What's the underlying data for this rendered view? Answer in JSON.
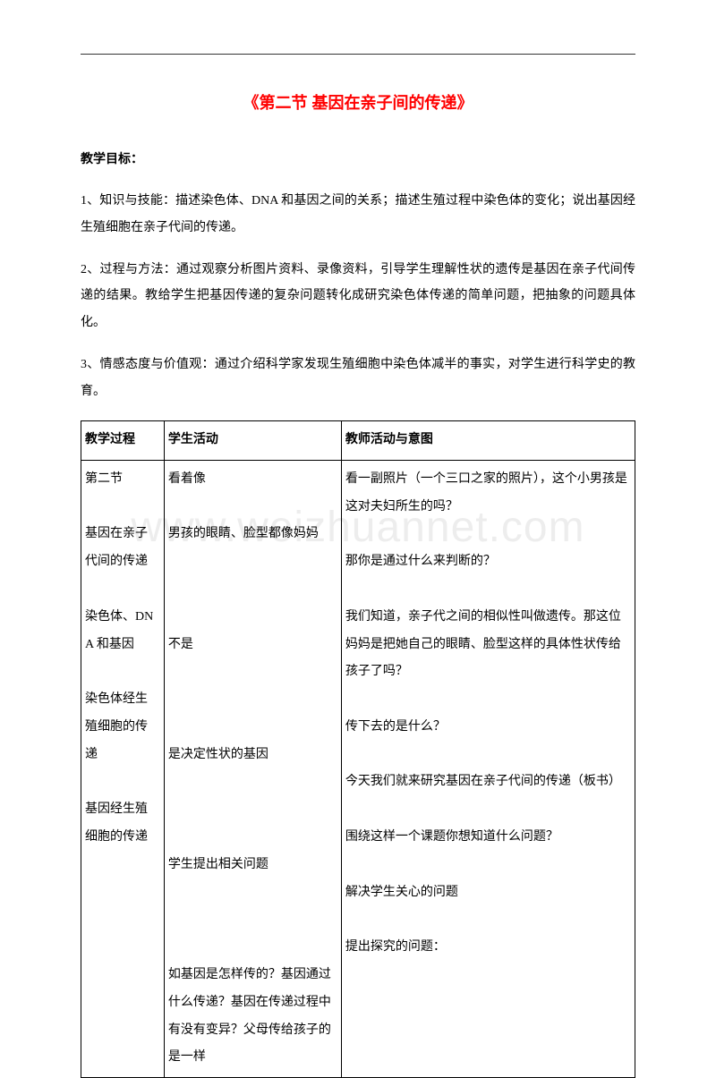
{
  "title": "《第二节 基因在亲子间的传递》",
  "section_header": "教学目标：",
  "para1": "1、知识与技能：描述染色体、DNA 和基因之间的关系；描述生殖过程中染色体的变化；说出基因经生殖细胞在亲子代间的传递。",
  "para2": "2、过程与方法：通过观察分析图片资料、录像资料，引导学生理解性状的遗传是基因在亲子代间传递的结果。教给学生把基因传递的复杂问题转化成研究染色体传递的简单问题，把抽象的问题具体化。",
  "para3": "3、情感态度与价值观：通过介绍科学家发现生殖细胞中染色体减半的事实，对学生进行科学史的教育。",
  "table": {
    "head": {
      "c1": "教学过程",
      "c2": "学生活动",
      "c3": "教师活动与意图"
    },
    "body": {
      "c1": "第二节\n\n基因在亲子代间的传递\n\n染色体、DNA 和基因\n\n染色体经生殖细胞的传递\n\n基因经生殖细胞的传递",
      "c2": "看着像\n\n男孩的眼睛、脸型都像妈妈\n\n\n\n不是\n\n\n\n是决定性状的基因\n\n\n\n学生提出相关问题\n\n\n\n如基因是怎样传的？基因通过什么传递？基因在传递过程中有没有变异？父母传给孩子的是一样",
      "c3": "看一副照片（一个三口之家的照片），这个小男孩是这对夫妇所生的吗？\n\n那你是通过什么来判断的？\n\n我们知道，亲子代之间的相似性叫做遗传。那这位妈妈是把她自己的眼睛、脸型这样的具体性状传给孩子了吗？\n\n传下去的是什么？\n\n今天我们就来研究基因在亲子代间的传递（板书）\n\n围绕这样一个课题你想知道什么问题？\n\n解决学生关心的问题\n\n提出探究的问题："
    }
  },
  "watermark": "www.weizhuannet.com"
}
